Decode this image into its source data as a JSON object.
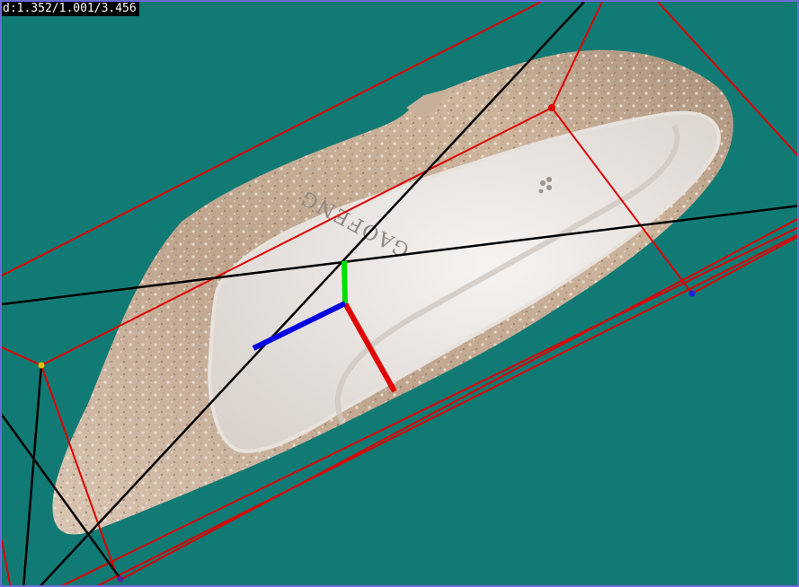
{
  "readout": {
    "dimensions": "d:1.352/1.001/3.456"
  },
  "shoe": {
    "brand_text": "GAOFENG"
  },
  "colors": {
    "background": "#127a74",
    "bbox": "#e00000",
    "projection_lines": "#000000",
    "axis_x": "#e00000",
    "axis_y": "#00e000",
    "axis_z": "#0000e0",
    "frame_border": "#6a6ad8"
  }
}
